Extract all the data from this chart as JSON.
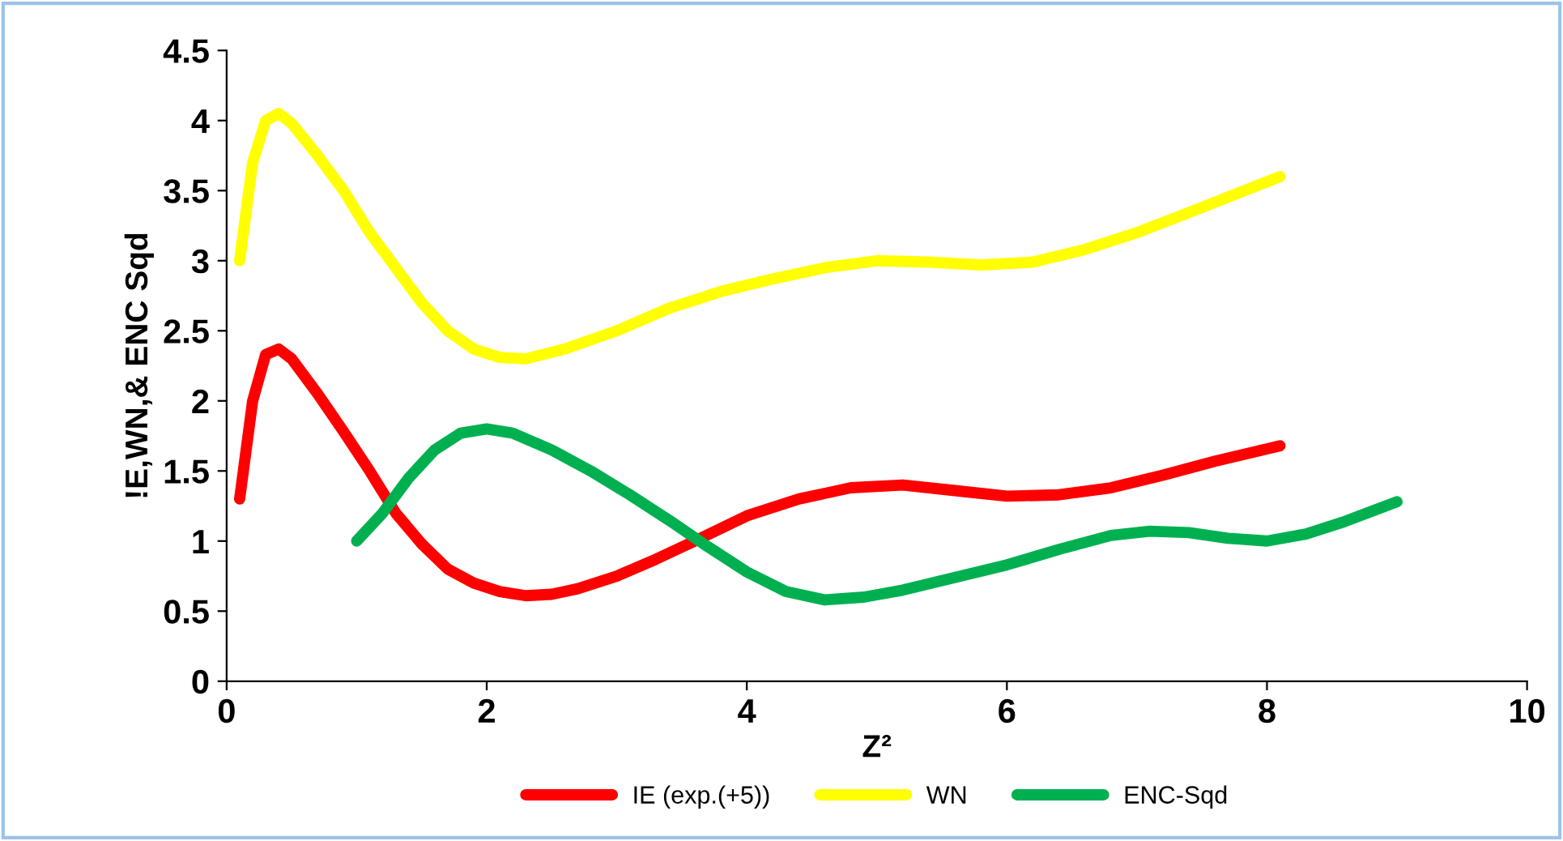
{
  "chart_data": {
    "type": "line",
    "xlabel": "Z²",
    "ylabel": "!E,WN,& ENC Sqd",
    "xlim": [
      0,
      10
    ],
    "xticks": [
      0,
      2,
      4,
      6,
      8,
      10
    ],
    "ylim": [
      0,
      4.5
    ],
    "yticks": [
      0,
      0.5,
      1,
      1.5,
      2,
      2.5,
      3,
      3.5,
      4,
      4.5
    ],
    "grid": false,
    "legend": "bottom",
    "marker": "none",
    "line_style": "solid",
    "series": [
      {
        "name": "IE (exp.(+5))",
        "color": "#ff0000",
        "x": [
          0.1,
          0.2,
          0.3,
          0.4,
          0.5,
          0.7,
          0.9,
          1.1,
          1.3,
          1.5,
          1.7,
          1.9,
          2.1,
          2.3,
          2.5,
          2.7,
          3.0,
          3.3,
          3.6,
          4.0,
          4.4,
          4.8,
          5.2,
          5.6,
          6.0,
          6.4,
          6.8,
          7.2,
          7.6,
          8.1
        ],
        "values": [
          1.3,
          2.0,
          2.33,
          2.37,
          2.3,
          2.05,
          1.78,
          1.5,
          1.2,
          0.98,
          0.8,
          0.7,
          0.64,
          0.61,
          0.62,
          0.66,
          0.75,
          0.87,
          1.0,
          1.18,
          1.3,
          1.38,
          1.4,
          1.36,
          1.32,
          1.33,
          1.38,
          1.47,
          1.57,
          1.68
        ]
      },
      {
        "name": "WN",
        "color": "#ffff00",
        "x": [
          0.1,
          0.2,
          0.3,
          0.4,
          0.5,
          0.7,
          0.9,
          1.1,
          1.3,
          1.5,
          1.7,
          1.9,
          2.1,
          2.3,
          2.6,
          3.0,
          3.4,
          3.8,
          4.2,
          4.6,
          5.0,
          5.4,
          5.8,
          6.2,
          6.6,
          7.0,
          7.5,
          8.1
        ],
        "values": [
          3.0,
          3.7,
          4.0,
          4.05,
          3.98,
          3.75,
          3.5,
          3.2,
          2.95,
          2.7,
          2.5,
          2.37,
          2.31,
          2.3,
          2.37,
          2.5,
          2.66,
          2.78,
          2.87,
          2.95,
          3.0,
          2.99,
          2.97,
          2.99,
          3.08,
          3.2,
          3.38,
          3.6
        ]
      },
      {
        "name": "ENC-Sqd",
        "color": "#00b050",
        "x": [
          1.0,
          1.2,
          1.4,
          1.6,
          1.8,
          2.0,
          2.2,
          2.5,
          2.8,
          3.1,
          3.4,
          3.7,
          4.0,
          4.3,
          4.6,
          4.9,
          5.2,
          5.6,
          6.0,
          6.4,
          6.8,
          7.1,
          7.4,
          7.7,
          8.0,
          8.3,
          8.6,
          9.0
        ],
        "values": [
          1.0,
          1.2,
          1.45,
          1.65,
          1.77,
          1.8,
          1.77,
          1.65,
          1.5,
          1.33,
          1.15,
          0.96,
          0.78,
          0.64,
          0.58,
          0.6,
          0.65,
          0.74,
          0.83,
          0.94,
          1.04,
          1.07,
          1.06,
          1.02,
          1.0,
          1.05,
          1.14,
          1.28
        ]
      }
    ]
  }
}
